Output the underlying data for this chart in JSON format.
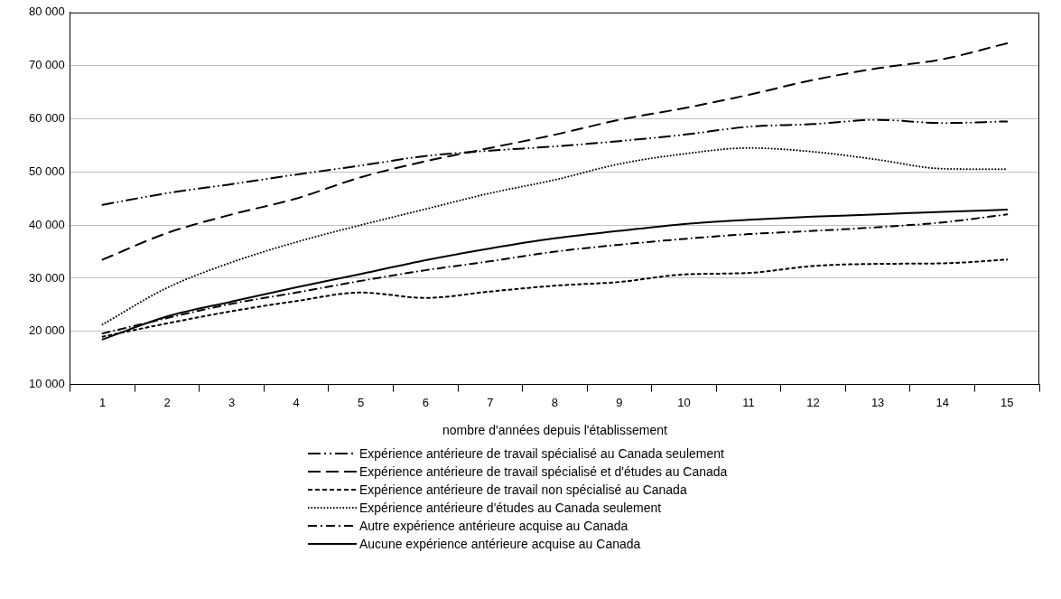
{
  "chart_data": {
    "type": "line",
    "xlabel": "nombre d'années depuis l'établissement",
    "categories": [
      "1",
      "2",
      "3",
      "4",
      "5",
      "6",
      "7",
      "8",
      "9",
      "10",
      "11",
      "12",
      "13",
      "14",
      "15"
    ],
    "ylim": [
      10000,
      80000
    ],
    "yticks": [
      {
        "value": 10000,
        "label": "10 000"
      },
      {
        "value": 20000,
        "label": "20 000"
      },
      {
        "value": 30000,
        "label": "30 000"
      },
      {
        "value": 40000,
        "label": "40 000"
      },
      {
        "value": 50000,
        "label": "50 000"
      },
      {
        "value": 60000,
        "label": "60 000"
      },
      {
        "value": 70000,
        "label": "70 000"
      },
      {
        "value": 80000,
        "label": "80 000"
      }
    ],
    "grid": "y",
    "legend": "bottom",
    "marker": "none",
    "series": [
      {
        "name": "Expérience antérieure de travail spécialisé au Canada seulement",
        "color": "#000000",
        "line_style": "dashdotdot",
        "values": [
          43800,
          46000,
          47700,
          49500,
          51200,
          53000,
          54000,
          54800,
          55800,
          57000,
          58500,
          59000,
          59800,
          59200,
          59500
        ]
      },
      {
        "name": "Expérience antérieure de travail spécialisé et d'études au Canada",
        "color": "#000000",
        "line_style": "longdash",
        "values": [
          33500,
          38500,
          42000,
          45000,
          49000,
          52000,
          54500,
          57000,
          59800,
          62000,
          64500,
          67300,
          69500,
          71200,
          74200
        ]
      },
      {
        "name": "Expérience antérieure de travail non spécialisé au Canada",
        "color": "#000000",
        "line_style": "dashed",
        "values": [
          19000,
          21500,
          23800,
          25700,
          27300,
          26300,
          27500,
          28600,
          29300,
          30700,
          31000,
          32300,
          32700,
          32800,
          33500
        ]
      },
      {
        "name": "Expérience antérieure d'études au Canada seulement",
        "color": "#000000",
        "line_style": "dotted",
        "values": [
          21300,
          28200,
          33000,
          36800,
          40000,
          43000,
          46000,
          48500,
          51500,
          53400,
          54500,
          53800,
          52300,
          50600,
          50500
        ]
      },
      {
        "name": "Autre expérience antérieure acquise au Canada",
        "color": "#000000",
        "line_style": "dashdot",
        "values": [
          19600,
          22500,
          25200,
          27300,
          29500,
          31500,
          33200,
          35000,
          36300,
          37400,
          38300,
          38900,
          39600,
          40500,
          42000
        ]
      },
      {
        "name": "Aucune expérience antérieure acquise au Canada",
        "color": "#000000",
        "line_style": "solid",
        "values": [
          18500,
          22800,
          25600,
          28300,
          30800,
          33400,
          35600,
          37500,
          38900,
          40200,
          41000,
          41600,
          42000,
          42500,
          42900
        ]
      }
    ]
  }
}
